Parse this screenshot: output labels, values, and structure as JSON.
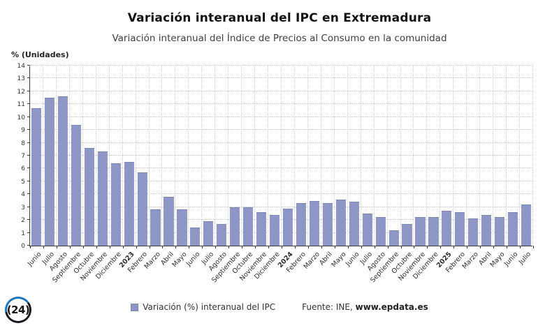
{
  "header": {
    "title": "Variación interanual del IPC en Extremadura",
    "subtitle": "Variación interanual del Índice de Precios al Consumo en la comunidad"
  },
  "chart_data": {
    "type": "bar",
    "title": "Variación interanual del IPC en Extremadura",
    "ylabel": "% (Unidades)",
    "xlabel": "",
    "ylim": [
      0,
      14
    ],
    "y_tick_step": 1,
    "grid": "dotted",
    "legend_position": "bottom",
    "bar_color": "#8d96c5",
    "categories": [
      "Junio",
      "Julio",
      "Agosto",
      "Septiembre",
      "Octubre",
      "Noviembre",
      "Diciembre",
      "2023",
      "Febrero",
      "Marzo",
      "Abril",
      "Mayo",
      "Junio",
      "Julio",
      "Agosto",
      "Septiembre",
      "Octubre",
      "Noviembre",
      "Diciembre",
      "2024",
      "Febrero",
      "Marzo",
      "Abril",
      "Mayo",
      "Junio",
      "Julio",
      "Agosto",
      "Septiembre",
      "Octubre",
      "Noviembre",
      "Diciembre",
      "2025",
      "Febrero",
      "Marzo",
      "Abril",
      "Mayo",
      "Junio",
      "Julio"
    ],
    "values": [
      10.7,
      11.5,
      11.6,
      9.4,
      7.6,
      7.3,
      6.4,
      6.5,
      5.7,
      2.8,
      3.8,
      2.8,
      1.4,
      1.9,
      1.7,
      3.0,
      3.0,
      2.6,
      2.4,
      2.9,
      3.3,
      3.5,
      3.3,
      3.6,
      3.4,
      2.5,
      2.2,
      1.2,
      1.7,
      2.2,
      2.2,
      2.7,
      2.6,
      2.1,
      2.4,
      2.2,
      2.6,
      3.2
    ]
  },
  "y_axis": {
    "title": "% (Unidades)"
  },
  "legend": {
    "label": "Variación (%) interanual del IPC",
    "swatch_color": "#8d96c5"
  },
  "source": {
    "prefix": "Fuente: INE, ",
    "site": "www.epdata.es"
  },
  "logo": {
    "text": "(24)"
  }
}
